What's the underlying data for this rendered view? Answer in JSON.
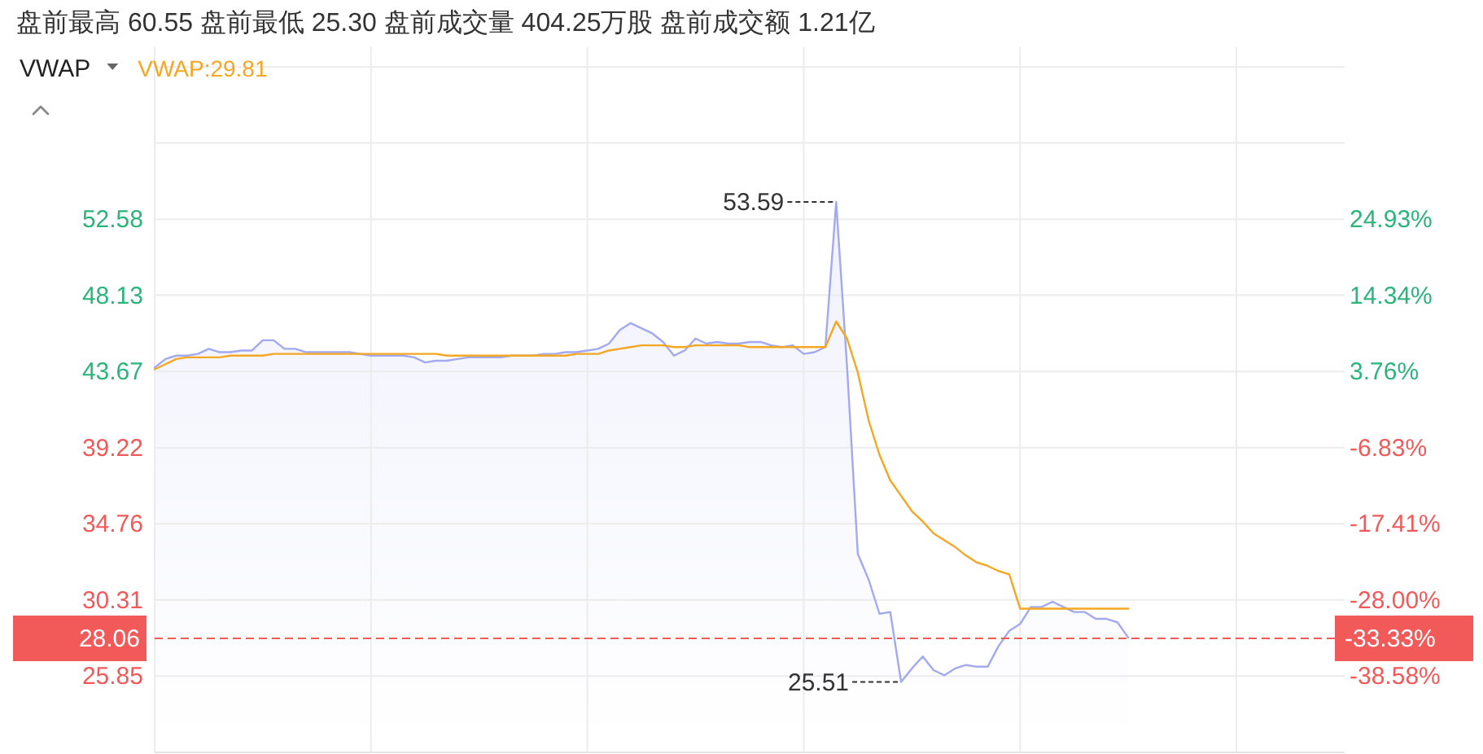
{
  "chart_data": {
    "type": "line",
    "title": "盘前最高 60.55 盘前最低 25.30 盘前成交量 404.25万股 盘前成交额 1.21亿",
    "categories": [
      null,
      null,
      null,
      null,
      null,
      null,
      null,
      null,
      null,
      null,
      null,
      null,
      null,
      null,
      null,
      null,
      null,
      null,
      null,
      null,
      null,
      null,
      null,
      null,
      null,
      null,
      null,
      null,
      null,
      null,
      null,
      null,
      null,
      null,
      null,
      null,
      null,
      null,
      null,
      null,
      null,
      null,
      null,
      null,
      null,
      null,
      null,
      null,
      null,
      null,
      null,
      null,
      null,
      null,
      null,
      null,
      null,
      null,
      null,
      null,
      null,
      null,
      null,
      null,
      null,
      null,
      null,
      null,
      null,
      null,
      null,
      null,
      null,
      null,
      null,
      null,
      null,
      null,
      null,
      null,
      null,
      null,
      null,
      null,
      null,
      null,
      null,
      null,
      null,
      null,
      null,
      null,
      null,
      null,
      null,
      null,
      null,
      null,
      null,
      null,
      null,
      null,
      null,
      null,
      null,
      null,
      null,
      null,
      null,
      null,
      null
    ],
    "series": [
      {
        "type": "area",
        "color": "#a3a9ef",
        "values": [
          43.9,
          44.4,
          44.6,
          44.6,
          44.7,
          45.0,
          44.8,
          44.8,
          44.9,
          44.9,
          45.5,
          45.5,
          45.0,
          45.0,
          44.8,
          44.8,
          44.8,
          44.8,
          44.8,
          44.7,
          44.6,
          44.6,
          44.6,
          44.6,
          44.5,
          44.2,
          44.3,
          44.3,
          44.4,
          44.5,
          44.5,
          44.5,
          44.5,
          44.6,
          44.6,
          44.6,
          44.7,
          44.7,
          44.8,
          44.8,
          44.9,
          45.0,
          45.3,
          46.1,
          46.5,
          46.2,
          45.9,
          45.4,
          44.6,
          44.9,
          45.6,
          45.3,
          45.4,
          45.3,
          45.3,
          45.4,
          45.4,
          45.2,
          45.1,
          45.2,
          44.7,
          44.8,
          45.1,
          53.59,
          44.0,
          33.0,
          31.5,
          29.5,
          29.6,
          25.51,
          26.3,
          27.0,
          26.2,
          25.9,
          26.3,
          26.5,
          26.4,
          26.4,
          27.6,
          28.5,
          28.9,
          29.9,
          29.9,
          30.2,
          29.9,
          29.6,
          29.6,
          29.2,
          29.2,
          29.0,
          28.1,
          null,
          null,
          null,
          null,
          null,
          null,
          null,
          null,
          null,
          null,
          null,
          null,
          null,
          null,
          null,
          null,
          null,
          null,
          null,
          null
        ],
        "value_labels": [
          null,
          null,
          null,
          null,
          null,
          null,
          null,
          null,
          null,
          null,
          null,
          null,
          null,
          null,
          null,
          null,
          null,
          null,
          null,
          null,
          null,
          null,
          null,
          null,
          null,
          null,
          null,
          null,
          null,
          null,
          null,
          null,
          null,
          null,
          null,
          null,
          null,
          null,
          null,
          null,
          null,
          null,
          null,
          null,
          null,
          null,
          null,
          null,
          null,
          null,
          null,
          null,
          null,
          null,
          null,
          null,
          null,
          null,
          null,
          null,
          null,
          null,
          null,
          "53.59",
          null,
          null,
          null,
          null,
          null,
          "25.51",
          null,
          null,
          null,
          null,
          null,
          null,
          null,
          null,
          null,
          null,
          null,
          null,
          null,
          null,
          null,
          null,
          null,
          null,
          null,
          null,
          null,
          null,
          null,
          null,
          null,
          null,
          null,
          null,
          null,
          null,
          null,
          null,
          null,
          null,
          null,
          null,
          null,
          null,
          null,
          null,
          null
        ]
      },
      {
        "name": "VWAP:29.81",
        "color": "#f5a623",
        "values": [
          43.8,
          44.1,
          44.4,
          44.5,
          44.5,
          44.5,
          44.5,
          44.6,
          44.6,
          44.6,
          44.6,
          44.7,
          44.7,
          44.7,
          44.7,
          44.7,
          44.7,
          44.7,
          44.7,
          44.7,
          44.7,
          44.7,
          44.7,
          44.7,
          44.7,
          44.7,
          44.7,
          44.6,
          44.6,
          44.6,
          44.6,
          44.6,
          44.6,
          44.6,
          44.6,
          44.6,
          44.6,
          44.6,
          44.6,
          44.7,
          44.7,
          44.7,
          44.9,
          45.0,
          45.1,
          45.2,
          45.2,
          45.2,
          45.1,
          45.1,
          45.2,
          45.2,
          45.2,
          45.2,
          45.2,
          45.1,
          45.1,
          45.1,
          45.1,
          45.1,
          45.1,
          45.1,
          45.1,
          46.6,
          45.6,
          43.6,
          40.8,
          38.8,
          37.3,
          36.4,
          35.5,
          34.9,
          34.2,
          33.8,
          33.4,
          32.9,
          32.5,
          32.3,
          32.0,
          31.8,
          29.8,
          29.8,
          29.8,
          29.8,
          29.8,
          29.8,
          29.8,
          29.8,
          29.8,
          29.8,
          29.8,
          null,
          null,
          null,
          null,
          null,
          null,
          null,
          null,
          null,
          null,
          null,
          null,
          null,
          null,
          null,
          null,
          null,
          null,
          null,
          null
        ]
      }
    ],
    "ylim": [
      21.39,
      62.64
    ],
    "yticks": [
      {
        "value": 61.49,
        "label": null
      },
      {
        "value": 57.04,
        "label": null
      },
      52.58,
      48.13,
      43.67,
      39.22,
      34.76,
      30.31,
      25.85
    ],
    "y2lim": [
      -49.18,
      48.83
    ],
    "y2ticks": [
      {
        "value": 24.93,
        "label": "24.93%"
      },
      {
        "value": 14.34,
        "label": "14.34%"
      },
      {
        "value": 3.76,
        "label": "3.76%"
      },
      {
        "value": -6.83,
        "label": "-6.83%"
      },
      {
        "value": -17.41,
        "label": "-17.41%"
      },
      {
        "value": -28.0,
        "label": "-28.00%"
      },
      {
        "value": -38.58,
        "label": "-38.58%"
      }
    ],
    "ref_lines": [
      {
        "axis": "y",
        "value": 28.06,
        "label": "28.06",
        "color": "#f25a5a",
        "line_style": "dashed"
      }
    ],
    "annotations": [
      "VWAP",
      "-33.33%"
    ],
    "grid": true,
    "legend": "top left"
  }
}
